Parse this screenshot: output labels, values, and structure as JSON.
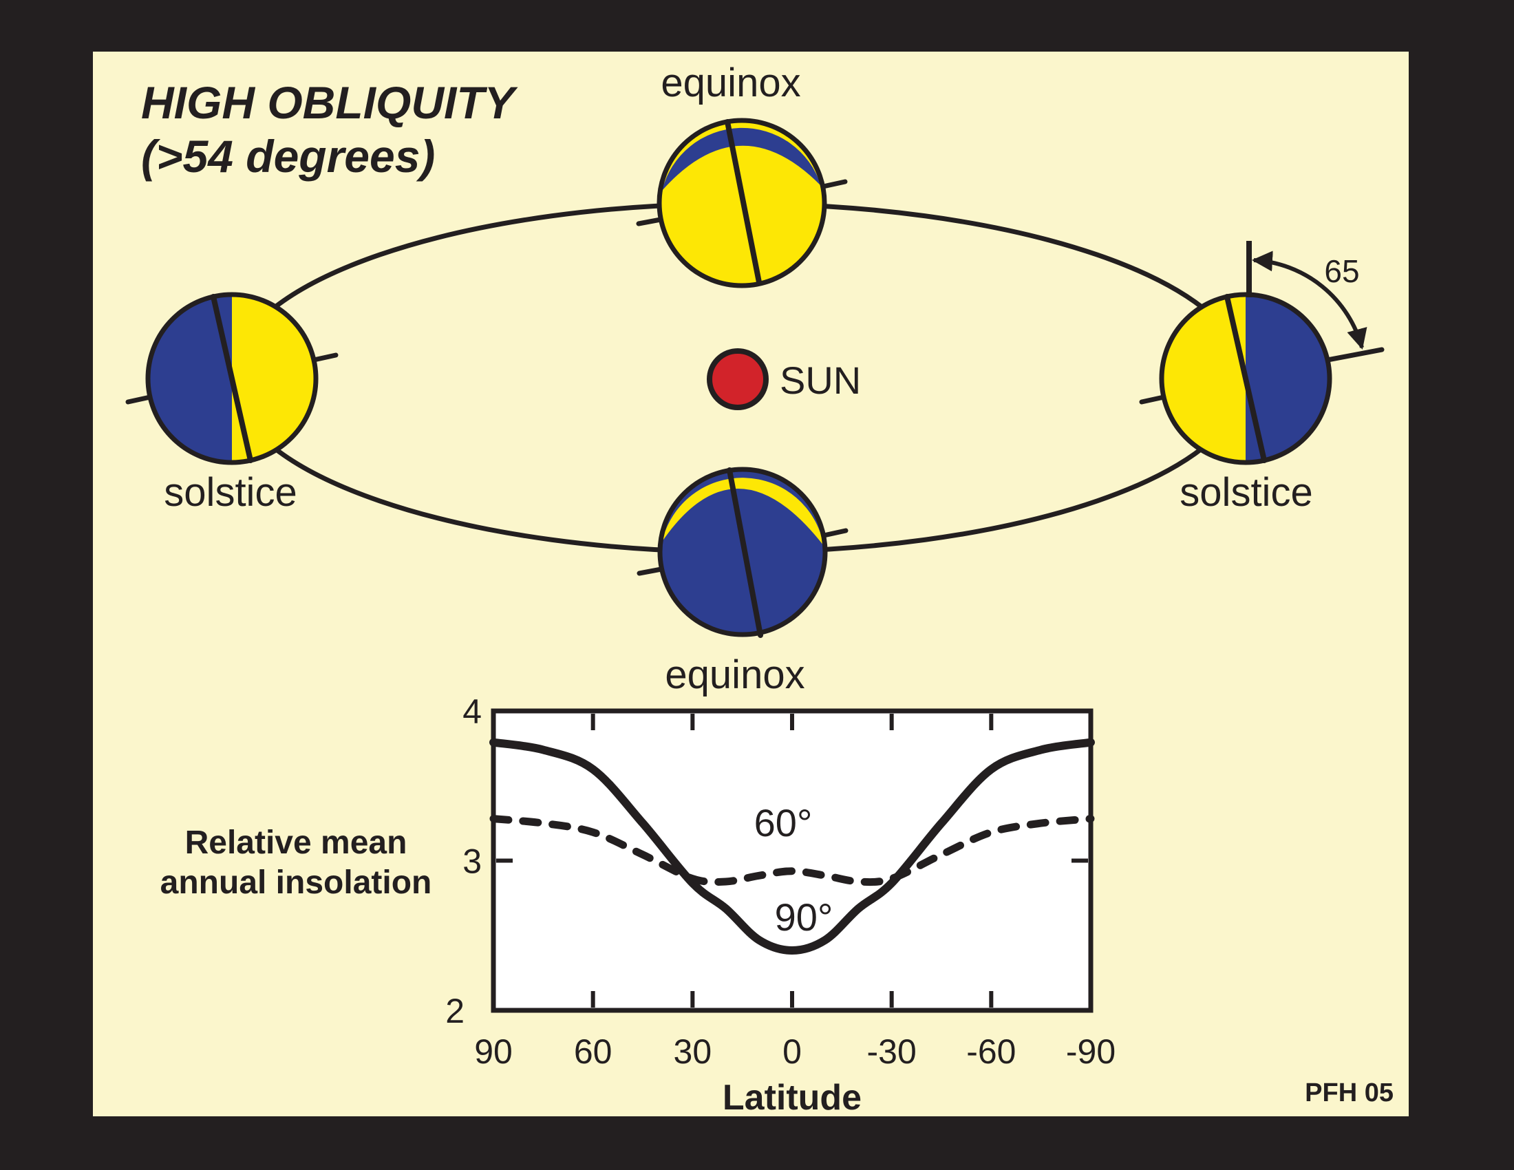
{
  "colors": {
    "frame": "#231F20",
    "panel": "#FBF6CC",
    "ink": "#231F20",
    "planet_blue": "#2D3E90",
    "planet_yellow": "#FDE705",
    "sun_red": "#D2232A",
    "chart_bg": "#FFFFFF"
  },
  "title": {
    "line1": "HIGH OBLIQUITY",
    "line2": "(>54 degrees)"
  },
  "labels": {
    "equinox_top": "equinox",
    "equinox_bottom": "equinox",
    "solstice_left": "solstice",
    "solstice_right": "solstice",
    "sun": "SUN",
    "tilt_angle": "65",
    "credit": "PFH 05"
  },
  "chart_data": {
    "type": "line",
    "xlabel": "Latitude",
    "ylabel": "Relative mean annual insolation",
    "ylabel_lines": [
      "Relative mean",
      "annual insolation"
    ],
    "xlim": [
      90,
      -90
    ],
    "ylim": [
      2,
      4
    ],
    "grid": false,
    "legend_position": "inline-labels",
    "x_ticks": [
      90,
      60,
      30,
      0,
      -30,
      -60,
      -90
    ],
    "x_tick_labels": [
      "90",
      "60",
      "30",
      "0",
      "-30",
      "-60",
      "-90"
    ],
    "y_ticks": [
      2,
      3,
      4
    ],
    "y_tick_labels": [
      "2",
      "3",
      "4"
    ],
    "series": [
      {
        "name": "obliquity 90 degrees",
        "label": "90°",
        "style": "solid",
        "x": [
          90,
          75,
          60,
          45,
          30,
          20,
          10,
          0,
          -10,
          -20,
          -30,
          -45,
          -60,
          -75,
          -90
        ],
        "y": [
          3.79,
          3.74,
          3.61,
          3.25,
          2.85,
          2.68,
          2.47,
          2.4,
          2.47,
          2.68,
          2.85,
          3.25,
          3.61,
          3.74,
          3.79
        ]
      },
      {
        "name": "obliquity 60 degrees",
        "label": "60°",
        "style": "dashed",
        "x": [
          90,
          75,
          60,
          45,
          30,
          20,
          10,
          0,
          -10,
          -20,
          -30,
          -45,
          -60,
          -75,
          -90
        ],
        "y": [
          3.28,
          3.25,
          3.19,
          3.04,
          2.88,
          2.86,
          2.9,
          2.93,
          2.9,
          2.86,
          2.88,
          3.04,
          3.19,
          3.25,
          3.28
        ]
      }
    ]
  }
}
